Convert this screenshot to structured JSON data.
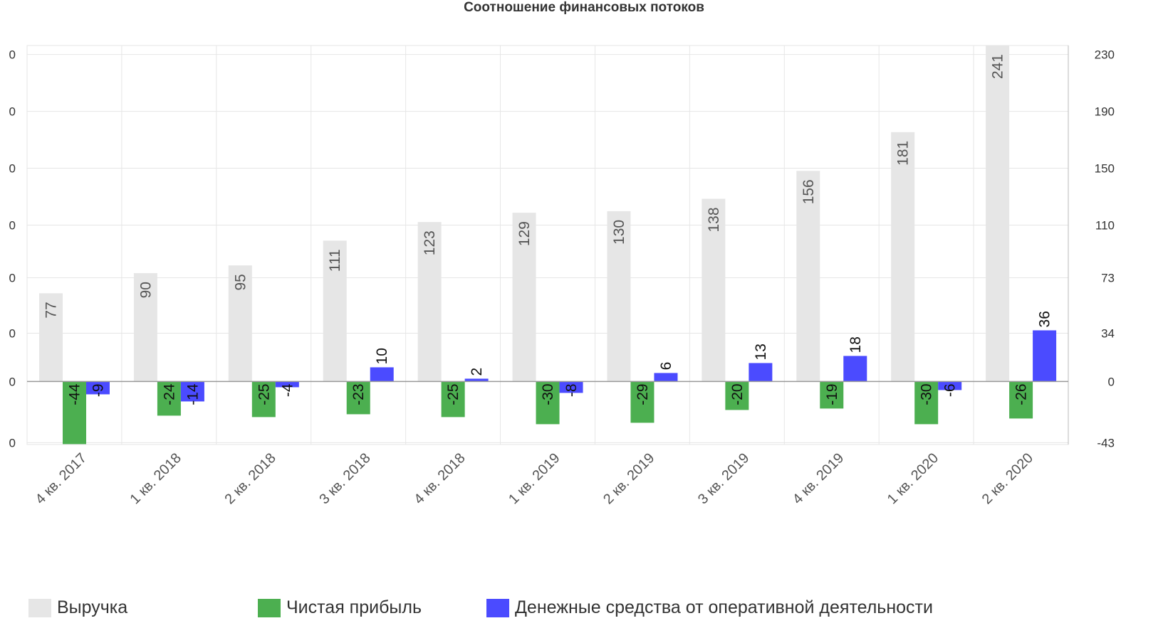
{
  "chart_data": {
    "type": "bar",
    "title": "Соотношение финансовых потоков",
    "categories": [
      "4 кв. 2017",
      "1 кв. 2018",
      "2 кв. 2018",
      "3 кв. 2018",
      "4 кв. 2018",
      "1 кв. 2019",
      "2 кв. 2019",
      "3 кв. 2019",
      "4 кв. 2019",
      "1 кв. 2020",
      "2 кв. 2020"
    ],
    "series": [
      {
        "name": "Выручка",
        "color": "#e6e6e6",
        "label_color": "#555555",
        "axis": "left",
        "values": [
          77,
          90,
          95,
          111,
          123,
          129,
          130,
          138,
          156,
          181,
          241
        ]
      },
      {
        "name": "Чистая прибыль",
        "color": "#4caf50",
        "label_color": "#111111",
        "axis": "right",
        "values": [
          -44,
          -24,
          -25,
          -23,
          -25,
          -30,
          -29,
          -20,
          -19,
          -30,
          -26
        ]
      },
      {
        "name": "Денежные средства от оперативной деятельности",
        "color": "#4b4bff",
        "label_color": "#111111",
        "axis": "right",
        "values": [
          -9,
          -14,
          -4,
          10,
          2,
          -8,
          6,
          13,
          18,
          -6,
          36
        ]
      }
    ],
    "left_axis": {
      "tick_labels": [
        "0",
        "0",
        "0",
        "0",
        "0",
        "0",
        "0",
        "0"
      ],
      "range": [
        -20.6,
        236.9
      ]
    },
    "right_axis": {
      "tick_labels": [
        "230",
        "190",
        "150",
        "110",
        "73",
        "34",
        "0",
        "-43"
      ],
      "range": [
        -44.3,
        236.3
      ]
    },
    "grid": true,
    "legend_position": "bottom-left"
  }
}
